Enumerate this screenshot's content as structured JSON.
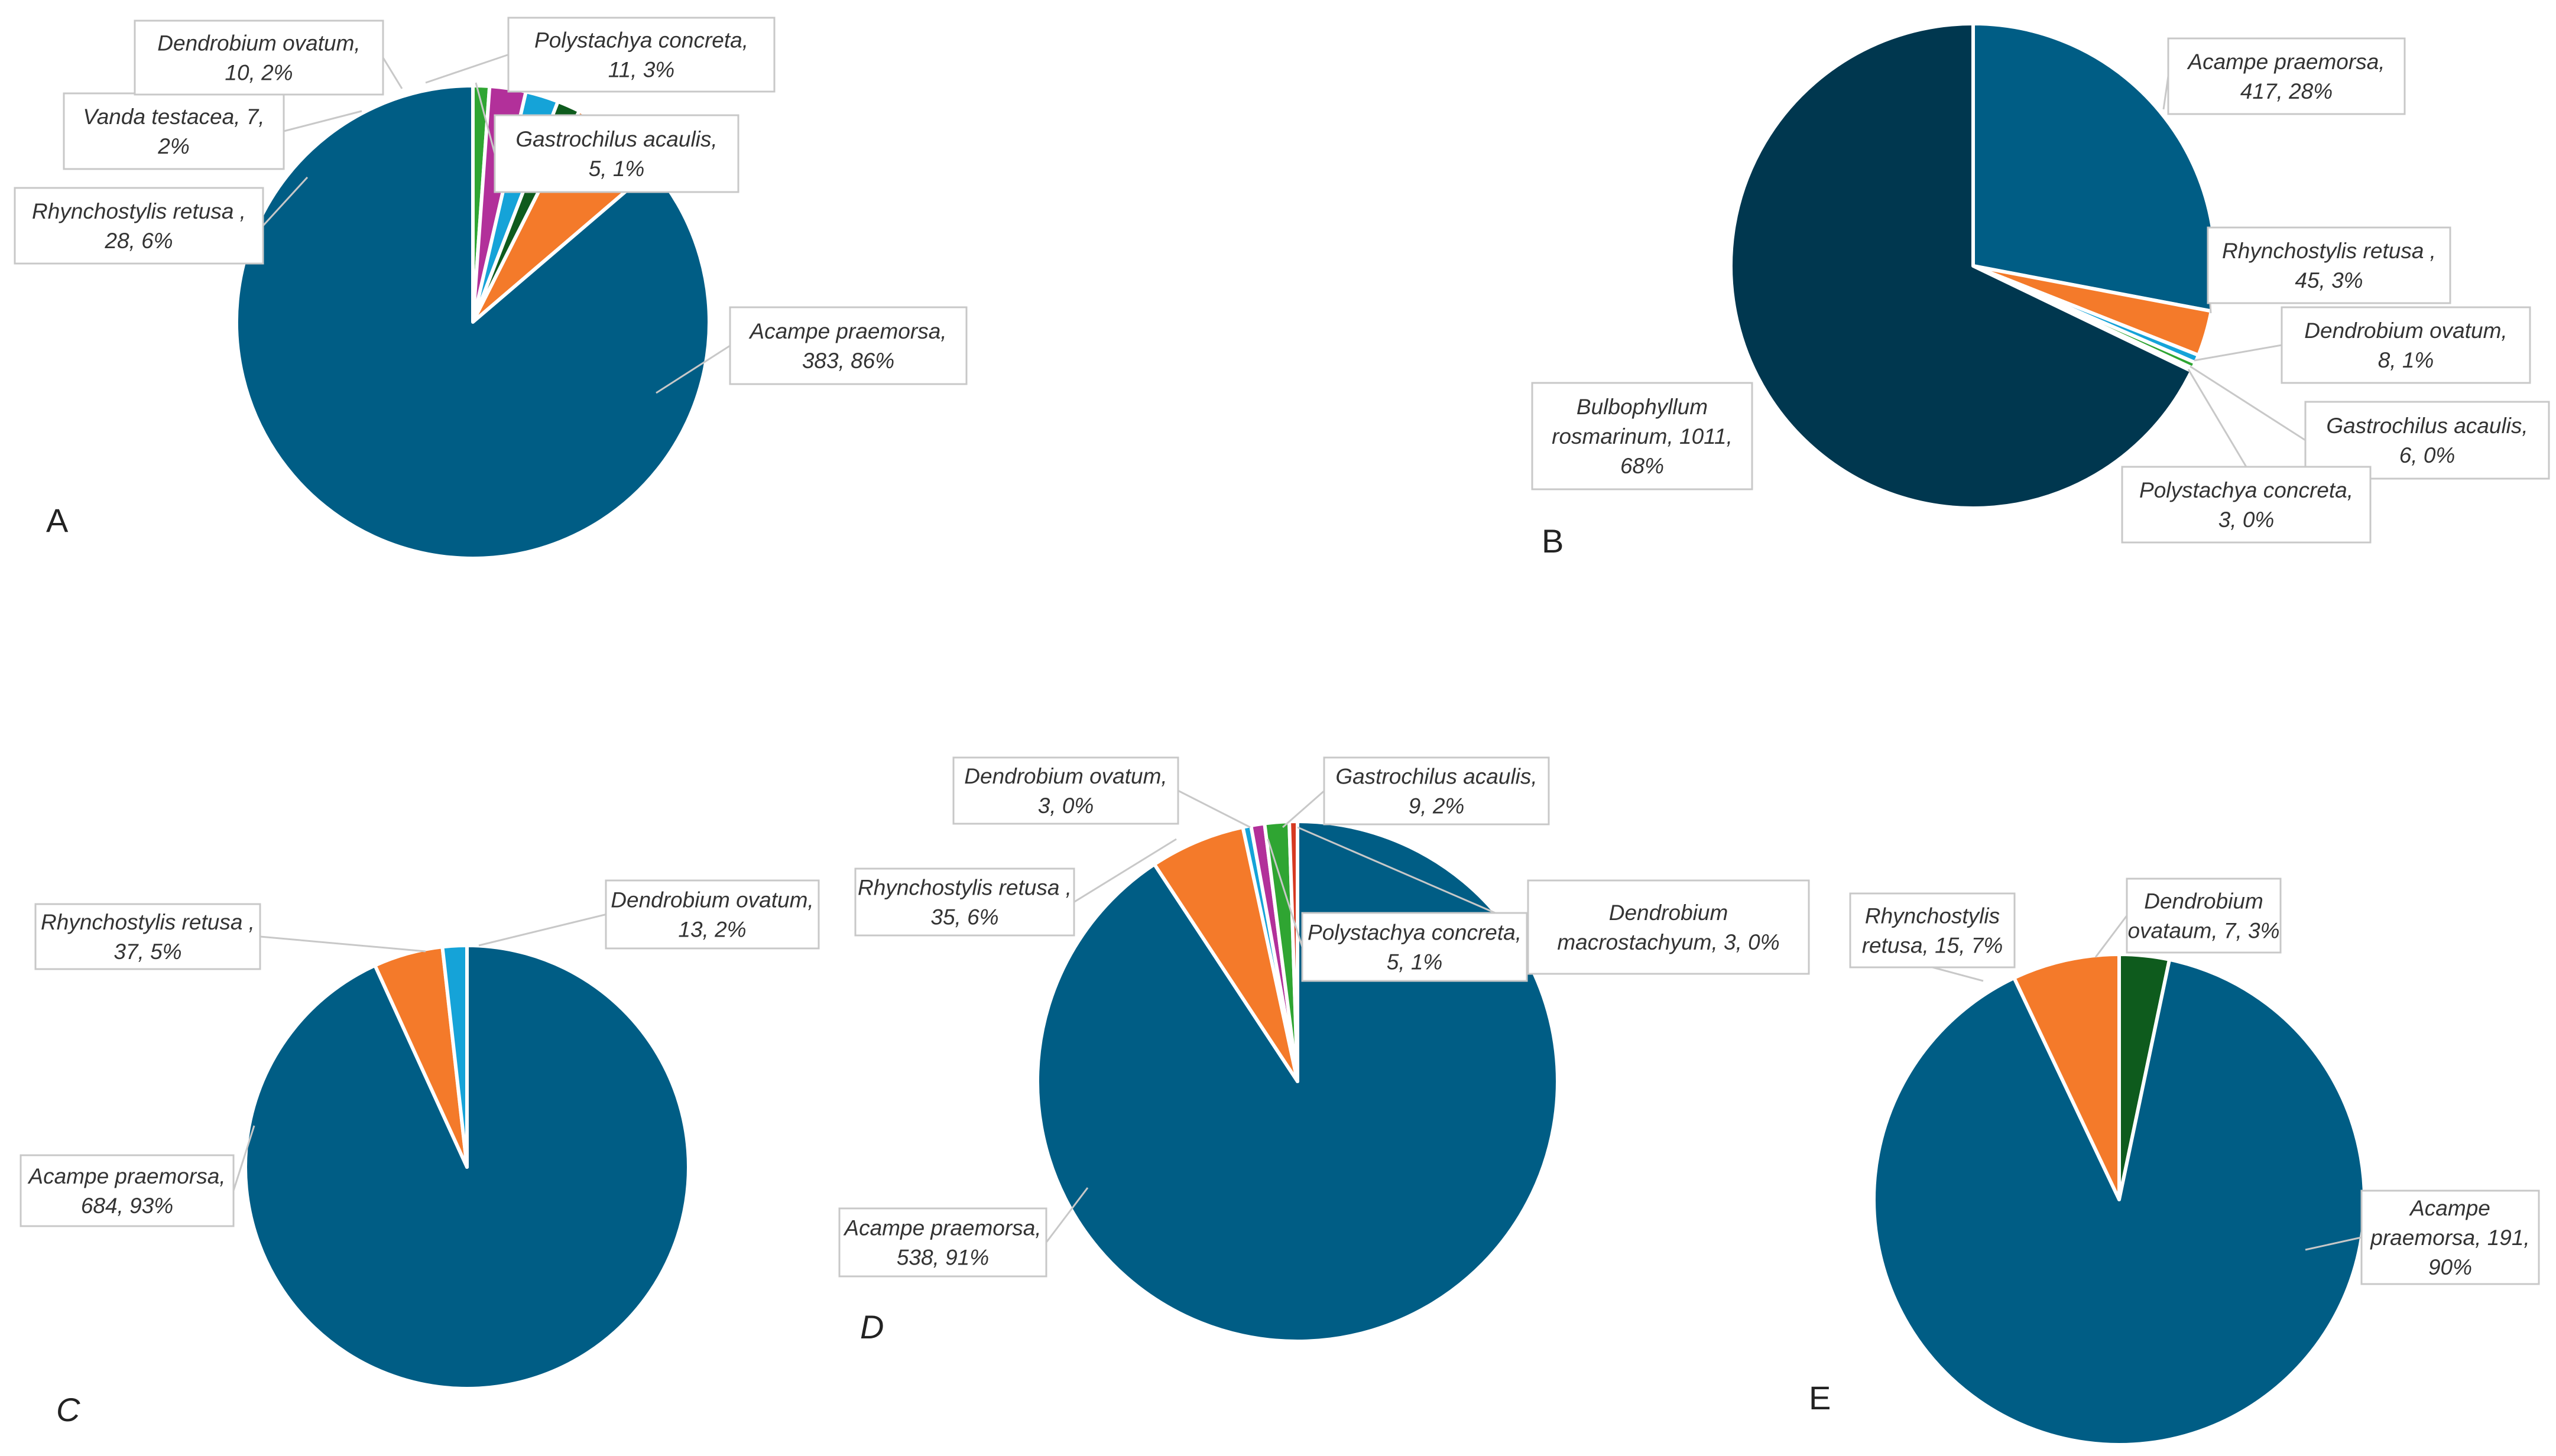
{
  "colors": {
    "blue": "#005d85",
    "orange": "#f47a2a",
    "cyan": "#15a3d8",
    "magenta": "#b2309a",
    "darkgreen": "#0e5b1d",
    "green": "#2fa532",
    "navy": "#00374f",
    "red": "#d63a22"
  },
  "chart_data": [
    {
      "type": "pie",
      "panel": "A",
      "title": "",
      "slices": [
        {
          "name": "Acampe praemorsa",
          "value": 383,
          "percent": "86%",
          "label": [
            "Acampe praemorsa,",
            "383, 86%"
          ],
          "color": "blue"
        },
        {
          "name": "Rhynchostylis retusa",
          "value": 28,
          "percent": "6%",
          "label": [
            "Rhynchostylis retusa ,",
            "28, 6%"
          ],
          "color": "orange"
        },
        {
          "name": "Vanda testacea",
          "value": 7,
          "percent": "2%",
          "label": [
            "Vanda testacea, 7,",
            "2%"
          ],
          "color": "darkgreen"
        },
        {
          "name": "Dendrobium ovatum",
          "value": 10,
          "percent": "2%",
          "label": [
            "Dendrobium ovatum,",
            "10, 2%"
          ],
          "color": "cyan"
        },
        {
          "name": "Polystachya concreta",
          "value": 11,
          "percent": "3%",
          "label": [
            "Polystachya concreta,",
            "11, 3%"
          ],
          "color": "magenta"
        },
        {
          "name": "Gastrochilus acaulis",
          "value": 5,
          "percent": "1%",
          "label": [
            "Gastrochilus acaulis,",
            "5, 1%"
          ],
          "color": "green"
        }
      ]
    },
    {
      "type": "pie",
      "panel": "B",
      "title": "",
      "slices": [
        {
          "name": "Acampe praemorsa",
          "value": 417,
          "percent": "28%",
          "label": [
            "Acampe praemorsa,",
            "417, 28%"
          ],
          "color": "blue"
        },
        {
          "name": "Rhynchostylis retusa",
          "value": 45,
          "percent": "3%",
          "label": [
            "Rhynchostylis retusa ,",
            "45, 3%"
          ],
          "color": "orange"
        },
        {
          "name": "Dendrobium ovatum",
          "value": 8,
          "percent": "1%",
          "label": [
            "Dendrobium ovatum,",
            "8, 1%"
          ],
          "color": "cyan"
        },
        {
          "name": "Gastrochilus acaulis",
          "value": 6,
          "percent": "0%",
          "label": [
            "Gastrochilus acaulis,",
            "6, 0%"
          ],
          "color": "green"
        },
        {
          "name": "Polystachya concreta",
          "value": 3,
          "percent": "0%",
          "label": [
            "Polystachya concreta,",
            "3, 0%"
          ],
          "color": "magenta"
        },
        {
          "name": "Bulbophyllum rosmarinum",
          "value": 1011,
          "percent": "68%",
          "label": [
            "Bulbophyllum",
            "rosmarinum, 1011,",
            "68%"
          ],
          "color": "navy"
        }
      ]
    },
    {
      "type": "pie",
      "panel": "C",
      "title": "",
      "slices": [
        {
          "name": "Acampe praemorsa",
          "value": 684,
          "percent": "93%",
          "label": [
            "Acampe praemorsa,",
            "684, 93%"
          ],
          "color": "blue"
        },
        {
          "name": "Rhynchostylis retusa",
          "value": 37,
          "percent": "5%",
          "label": [
            "Rhynchostylis retusa ,",
            "37, 5%"
          ],
          "color": "orange"
        },
        {
          "name": "Dendrobium ovatum",
          "value": 13,
          "percent": "2%",
          "label": [
            "Dendrobium ovatum,",
            "13, 2%"
          ],
          "color": "cyan"
        }
      ]
    },
    {
      "type": "pie",
      "panel": "D",
      "title": "",
      "slices": [
        {
          "name": "Acampe praemorsa",
          "value": 538,
          "percent": "91%",
          "label": [
            "Acampe praemorsa,",
            "538, 91%"
          ],
          "color": "blue"
        },
        {
          "name": "Rhynchostylis retusa",
          "value": 35,
          "percent": "6%",
          "label": [
            "Rhynchostylis retusa ,",
            "35, 6%"
          ],
          "color": "orange"
        },
        {
          "name": "Dendrobium ovatum",
          "value": 3,
          "percent": "0%",
          "label": [
            "Dendrobium ovatum,",
            "3, 0%"
          ],
          "color": "cyan"
        },
        {
          "name": "Polystachya concreta",
          "value": 5,
          "percent": "1%",
          "label": [
            "Polystachya concreta,",
            "5, 1%"
          ],
          "color": "magenta"
        },
        {
          "name": "Gastrochilus acaulis",
          "value": 9,
          "percent": "2%",
          "label": [
            "Gastrochilus acaulis,",
            "9, 2%"
          ],
          "color": "green"
        },
        {
          "name": "Dendrobium macrostachyum",
          "value": 3,
          "percent": "0%",
          "label": [
            "Dendrobium",
            "macrostachyum, 3, 0%"
          ],
          "color": "red"
        }
      ]
    },
    {
      "type": "pie",
      "panel": "E",
      "title": "",
      "slices": [
        {
          "name": "Acampe praemorsa",
          "value": 191,
          "percent": "90%",
          "label": [
            "Acampe",
            "praemorsa, 191,",
            "90%"
          ],
          "color": "blue"
        },
        {
          "name": "Rhynchostylis retusa",
          "value": 15,
          "percent": "7%",
          "label": [
            "Rhynchostylis",
            "retusa, 15, 7%"
          ],
          "color": "orange"
        },
        {
          "name": "Dendrobium ovataum",
          "value": 7,
          "percent": "3%",
          "label": [
            "Dendrobium",
            "ovataum, 7, 3%"
          ],
          "color": "darkgreen"
        }
      ]
    }
  ]
}
